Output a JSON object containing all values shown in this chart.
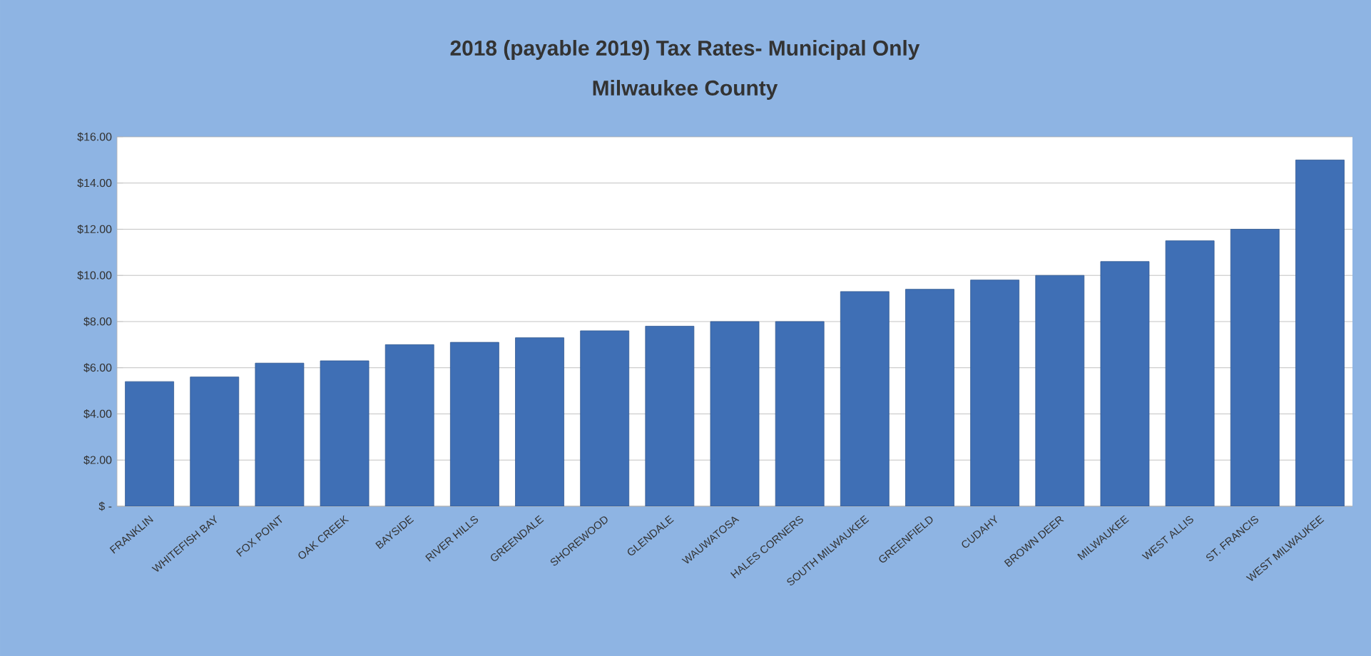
{
  "chart_data": {
    "type": "bar",
    "title": "2018 (payable 2019) Tax Rates- Municipal Only",
    "subtitle": "Milwaukee County",
    "categories": [
      "FRANKLIN",
      "WHITEFISH BAY",
      "FOX POINT",
      "OAK CREEK",
      "BAYSIDE",
      "RIVER HILLS",
      "GREENDALE",
      "SHOREWOOD",
      "GLENDALE",
      "WAUWATOSA",
      "HALES CORNERS",
      "SOUTH MILWAUKEE",
      "GREENFIELD",
      "CUDAHY",
      "BROWN DEER",
      "MILWAUKEE",
      "WEST ALLIS",
      "ST. FRANCIS",
      "WEST MILWAUKEE"
    ],
    "values": [
      5.4,
      5.6,
      6.2,
      6.3,
      7.0,
      7.1,
      7.3,
      7.6,
      7.8,
      8.0,
      8.0,
      9.3,
      9.4,
      9.8,
      10.0,
      10.6,
      11.5,
      12.0,
      15.0
    ],
    "color": "#3f6fb5",
    "ylim": [
      0,
      16
    ],
    "yticks": [
      {
        "value": 0,
        "label": "$ -"
      },
      {
        "value": 2,
        "label": "$2.00"
      },
      {
        "value": 4,
        "label": "$4.00"
      },
      {
        "value": 6,
        "label": "$6.00"
      },
      {
        "value": 8,
        "label": "$8.00"
      },
      {
        "value": 10,
        "label": "$10.00"
      },
      {
        "value": 12,
        "label": "$12.00"
      },
      {
        "value": 14,
        "label": "$14.00"
      },
      {
        "value": 16,
        "label": "$16.00"
      }
    ],
    "grid": "y"
  }
}
